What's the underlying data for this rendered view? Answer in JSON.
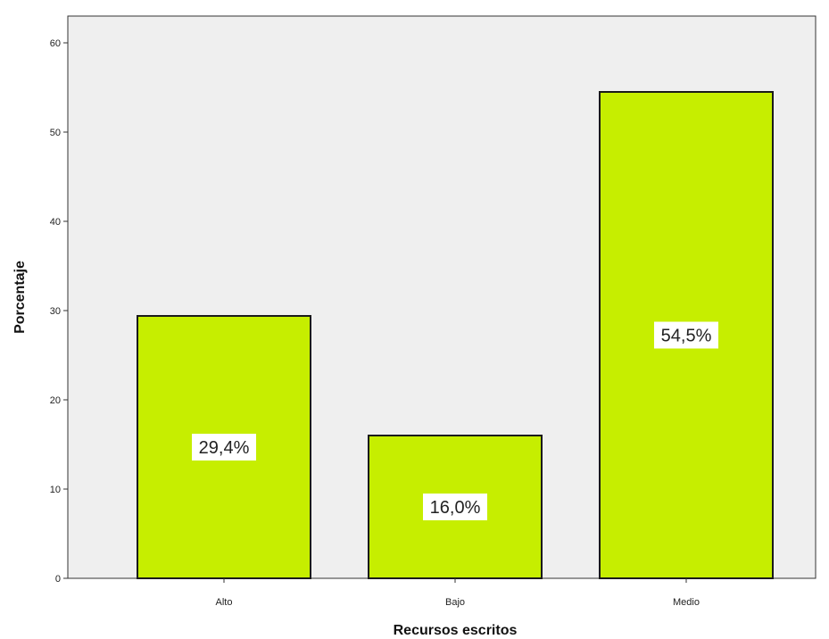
{
  "chart_data": {
    "type": "bar",
    "categories": [
      "Alto",
      "Bajo",
      "Medio"
    ],
    "values": [
      29.4,
      16.0,
      54.5
    ],
    "data_labels": [
      "29,4%",
      "16,0%",
      "54,5%"
    ],
    "xlabel": "Recursos escritos",
    "ylabel": "Porcentaje",
    "ylim": [
      0,
      60
    ],
    "yticks": [
      0,
      10,
      20,
      30,
      40,
      50,
      60
    ],
    "grid": false,
    "colors": {
      "bar_fill": "#c6ee00",
      "bar_stroke": "#1a1a1a",
      "plot_background": "#efefef",
      "label_background": "#ffffff"
    }
  }
}
